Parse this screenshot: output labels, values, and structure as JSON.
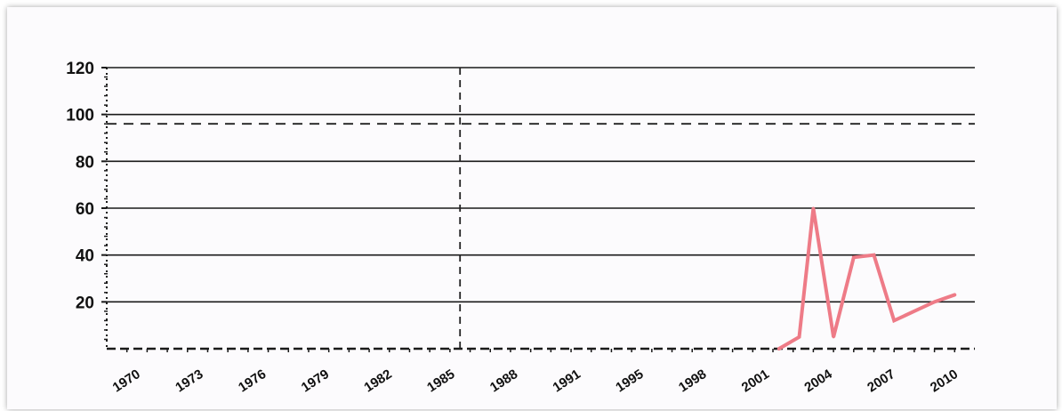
{
  "chart_data": {
    "type": "line",
    "title": "",
    "xlabel": "",
    "ylabel": "",
    "x_tick_labels": [
      "1970",
      "1973",
      "1976",
      "1979",
      "1982",
      "1985",
      "1988",
      "1991",
      "1995",
      "1998",
      "2001",
      "2004",
      "2007",
      "2010"
    ],
    "y_tick_labels": [
      "20",
      "40",
      "60",
      "80",
      "100",
      "120"
    ],
    "xlim": [
      1969,
      2012
    ],
    "ylim": [
      0,
      120
    ],
    "grid": true,
    "legend": "none",
    "reference_lines": [
      {
        "orientation": "horizontal",
        "value": 96,
        "style": "dashed",
        "color": "#222222"
      },
      {
        "orientation": "vertical",
        "value": 1986.5,
        "style": "dashed",
        "color": "#222222"
      }
    ],
    "series": [
      {
        "color": "#ee7b87",
        "x": [
          2002.3,
          2003.3,
          2004,
          2005,
          2006,
          2007,
          2008,
          2009,
          2010,
          2011
        ],
        "values": [
          0,
          5,
          60,
          5,
          39,
          40,
          12,
          16,
          20,
          23
        ]
      }
    ]
  }
}
